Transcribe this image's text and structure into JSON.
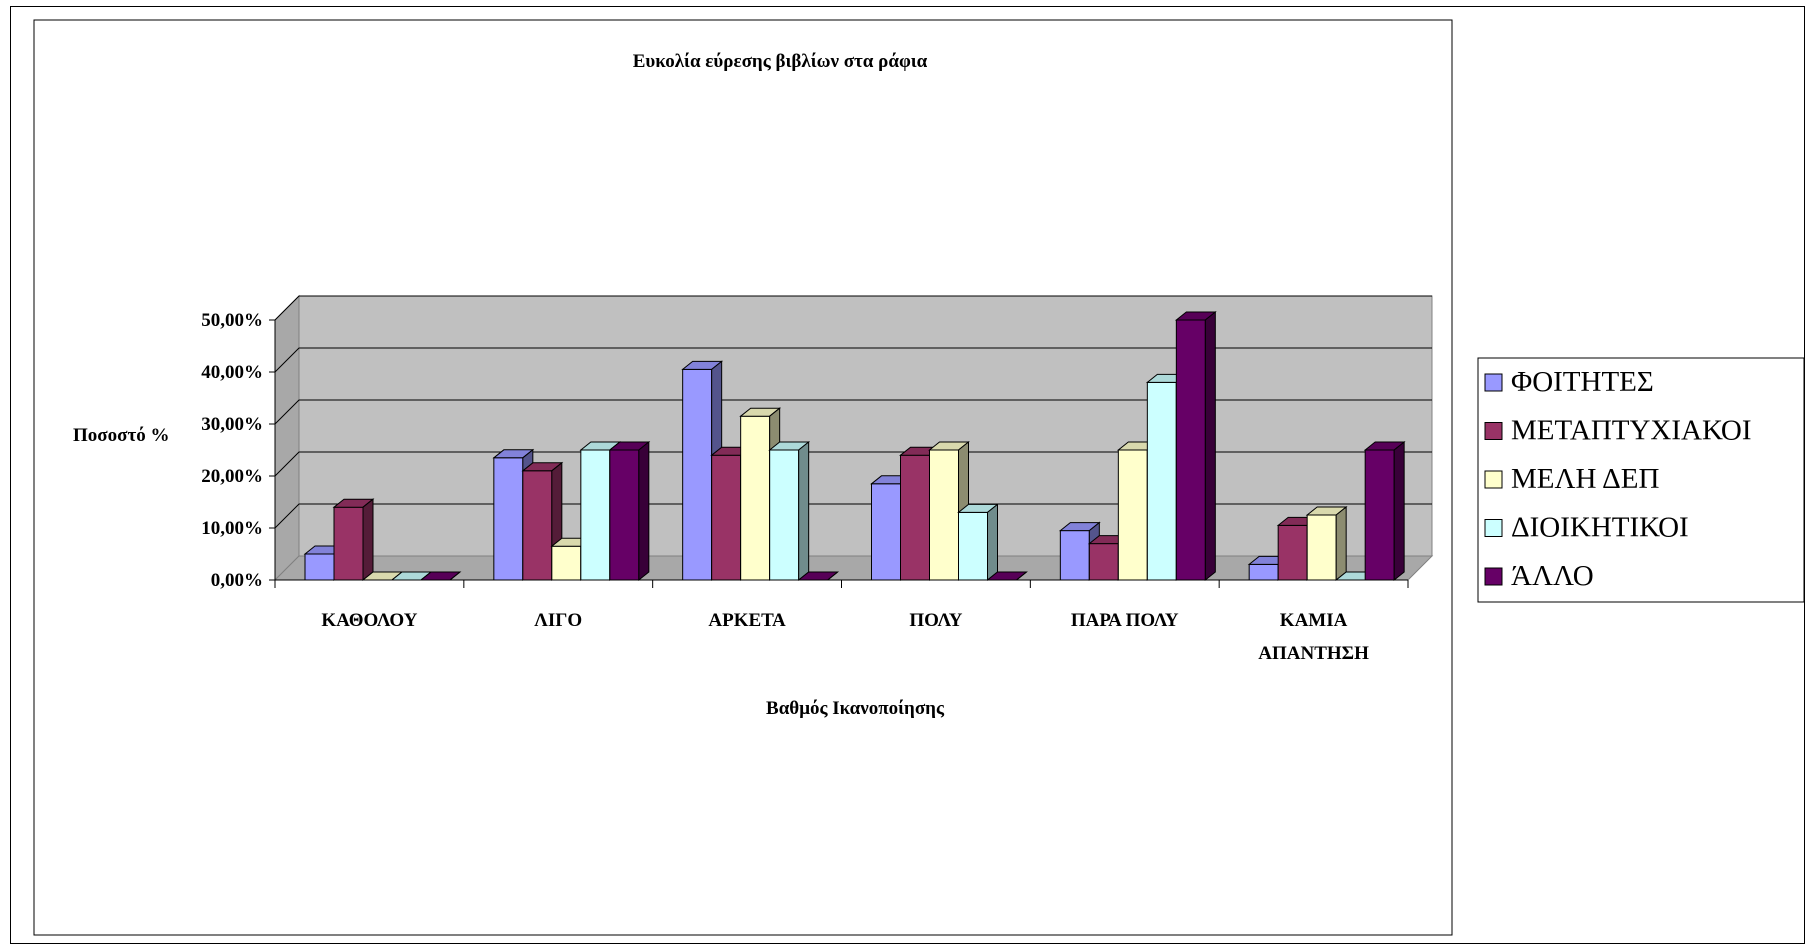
{
  "chart_data": {
    "type": "bar",
    "title": "Ευκολία εύρεσης βιβλίων στα ράφια",
    "xlabel": "Βαθμός Ικανοποίησης",
    "ylabel": "Ποσοστό %",
    "categories": [
      [
        "ΚΑΘΟΛΟΥ"
      ],
      [
        "ΛΙΓΟ"
      ],
      [
        "ΑΡΚΕΤΑ"
      ],
      [
        "ΠΟΛΥ"
      ],
      [
        "ΠΑΡΑ ΠΟΛΥ"
      ],
      [
        "ΚΑΜΙΑ",
        "ΑΠΑΝΤΗΣΗ"
      ]
    ],
    "ylim": [
      0,
      50
    ],
    "yticks": [
      "0,00%",
      "10,00%",
      "20,00%",
      "30,00%",
      "40,00%",
      "50,00%"
    ],
    "grid": true,
    "legend_position": "right",
    "series": [
      {
        "name": "ΦΟΙΤΗΤΕΣ",
        "color": "#9999FF",
        "values": [
          5.0,
          23.5,
          40.5,
          18.5,
          9.5,
          3.0
        ]
      },
      {
        "name": "ΜΕΤΑΠΤΥΧΙΑΚΟΙ",
        "color": "#993366",
        "values": [
          14.0,
          21.0,
          24.0,
          24.0,
          7.0,
          10.5
        ]
      },
      {
        "name": "ΜΕΛΗ ΔΕΠ",
        "color": "#FFFFCC",
        "values": [
          0.0,
          6.5,
          31.5,
          25.0,
          25.0,
          12.5
        ]
      },
      {
        "name": "ΔΙΟΙΚΗΤΙΚΟΙ",
        "color": "#CCFFFF",
        "values": [
          0.0,
          25.0,
          25.0,
          13.0,
          38.0,
          0.0
        ]
      },
      {
        "name": "ΆΛΛΟ",
        "color": "#660066",
        "values": [
          0.0,
          25.0,
          0.0,
          0.0,
          50.0,
          25.0
        ]
      }
    ]
  }
}
